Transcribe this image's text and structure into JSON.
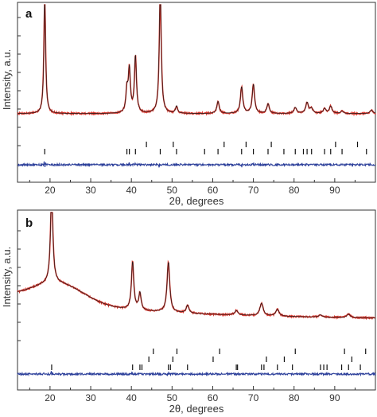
{
  "colors": {
    "observed": "#d8382f",
    "calculated": "#1a1a1a",
    "difference": "#2c3f9a",
    "bragg": "#111111"
  },
  "chart_data": [
    {
      "type": "line",
      "panel_label": "a",
      "xlabel": "2θ, degrees",
      "ylabel": "Intensity, a.u.",
      "xlim": [
        12,
        100
      ],
      "xticks": [
        20,
        30,
        40,
        50,
        60,
        70,
        80,
        90
      ],
      "x_tick_labels": [
        "20",
        "30",
        "40",
        "50",
        "60",
        "70",
        "80",
        "90"
      ],
      "grid": false,
      "legend": "none",
      "baseline": 0.1,
      "peaks": [
        {
          "pos": 18.7,
          "height": 1.0,
          "width": 0.25
        },
        {
          "pos": 38.9,
          "height": 0.18,
          "width": 0.3
        },
        {
          "pos": 39.5,
          "height": 0.35,
          "width": 0.3
        },
        {
          "pos": 41.0,
          "height": 0.47,
          "width": 0.3
        },
        {
          "pos": 47.1,
          "height": 1.0,
          "width": 0.3
        },
        {
          "pos": 51.1,
          "height": 0.06,
          "width": 0.3
        },
        {
          "pos": 61.3,
          "height": 0.1,
          "width": 0.35
        },
        {
          "pos": 67.1,
          "height": 0.22,
          "width": 0.35
        },
        {
          "pos": 70.0,
          "height": 0.24,
          "width": 0.35
        },
        {
          "pos": 73.6,
          "height": 0.08,
          "width": 0.35
        },
        {
          "pos": 80.3,
          "height": 0.05,
          "width": 0.4
        },
        {
          "pos": 83.2,
          "height": 0.09,
          "width": 0.4
        },
        {
          "pos": 84.3,
          "height": 0.04,
          "width": 0.4
        },
        {
          "pos": 87.5,
          "height": 0.04,
          "width": 0.4
        },
        {
          "pos": 89.0,
          "height": 0.06,
          "width": 0.4
        },
        {
          "pos": 91.8,
          "height": 0.02,
          "width": 0.4
        },
        {
          "pos": 99.0,
          "height": 0.03,
          "width": 0.4
        }
      ],
      "bragg_rows": [
        [
          18.7,
          38.9,
          39.5,
          41.0,
          47.1,
          51.1,
          58.0,
          61.3,
          67.1,
          70.0,
          73.6,
          77.5,
          80.3,
          82.3,
          83.2,
          84.3,
          87.5,
          89.0,
          91.8,
          97.8
        ],
        [
          43.7,
          50.3,
          62.8,
          68.2,
          74.4,
          90.2,
          95.6
        ]
      ]
    },
    {
      "type": "line",
      "panel_label": "b",
      "xlabel": "2θ, degrees",
      "ylabel": "Intensity, a.u.",
      "xlim": [
        12,
        100
      ],
      "xticks": [
        20,
        30,
        40,
        50,
        60,
        70,
        80,
        90
      ],
      "x_tick_labels": [
        "20",
        "30",
        "40",
        "50",
        "60",
        "70",
        "80",
        "90"
      ],
      "grid": false,
      "legend": "none",
      "background": {
        "start": 0.25,
        "hump_center": 22.0,
        "hump_height": 0.18,
        "hump_width": 9.0,
        "decay": 0.03,
        "floor": 0.06
      },
      "peaks": [
        {
          "pos": 20.4,
          "height": 0.82,
          "width": 0.35
        },
        {
          "pos": 40.3,
          "height": 0.42,
          "width": 0.35
        },
        {
          "pos": 42.1,
          "height": 0.15,
          "width": 0.35
        },
        {
          "pos": 49.1,
          "height": 0.44,
          "width": 0.4
        },
        {
          "pos": 53.8,
          "height": 0.07,
          "width": 0.4
        },
        {
          "pos": 65.8,
          "height": 0.04,
          "width": 0.5
        },
        {
          "pos": 72.0,
          "height": 0.11,
          "width": 0.5
        },
        {
          "pos": 75.9,
          "height": 0.06,
          "width": 0.5
        },
        {
          "pos": 86.5,
          "height": 0.02,
          "width": 0.5
        },
        {
          "pos": 93.4,
          "height": 0.03,
          "width": 0.5
        }
      ],
      "bragg_rows": [
        [
          20.4,
          40.3,
          42.1,
          42.6,
          49.1,
          49.6,
          53.8,
          65.8,
          66.1,
          72.0,
          72.6,
          75.9,
          79.6,
          86.5,
          87.3,
          88.1,
          91.7,
          93.4,
          96.3
        ],
        [
          44.3,
          50.2,
          60.1,
          73.2,
          77.6,
          94.2
        ],
        [
          45.4,
          51.2,
          61.7,
          80.3,
          92.4,
          97.6
        ]
      ]
    }
  ]
}
